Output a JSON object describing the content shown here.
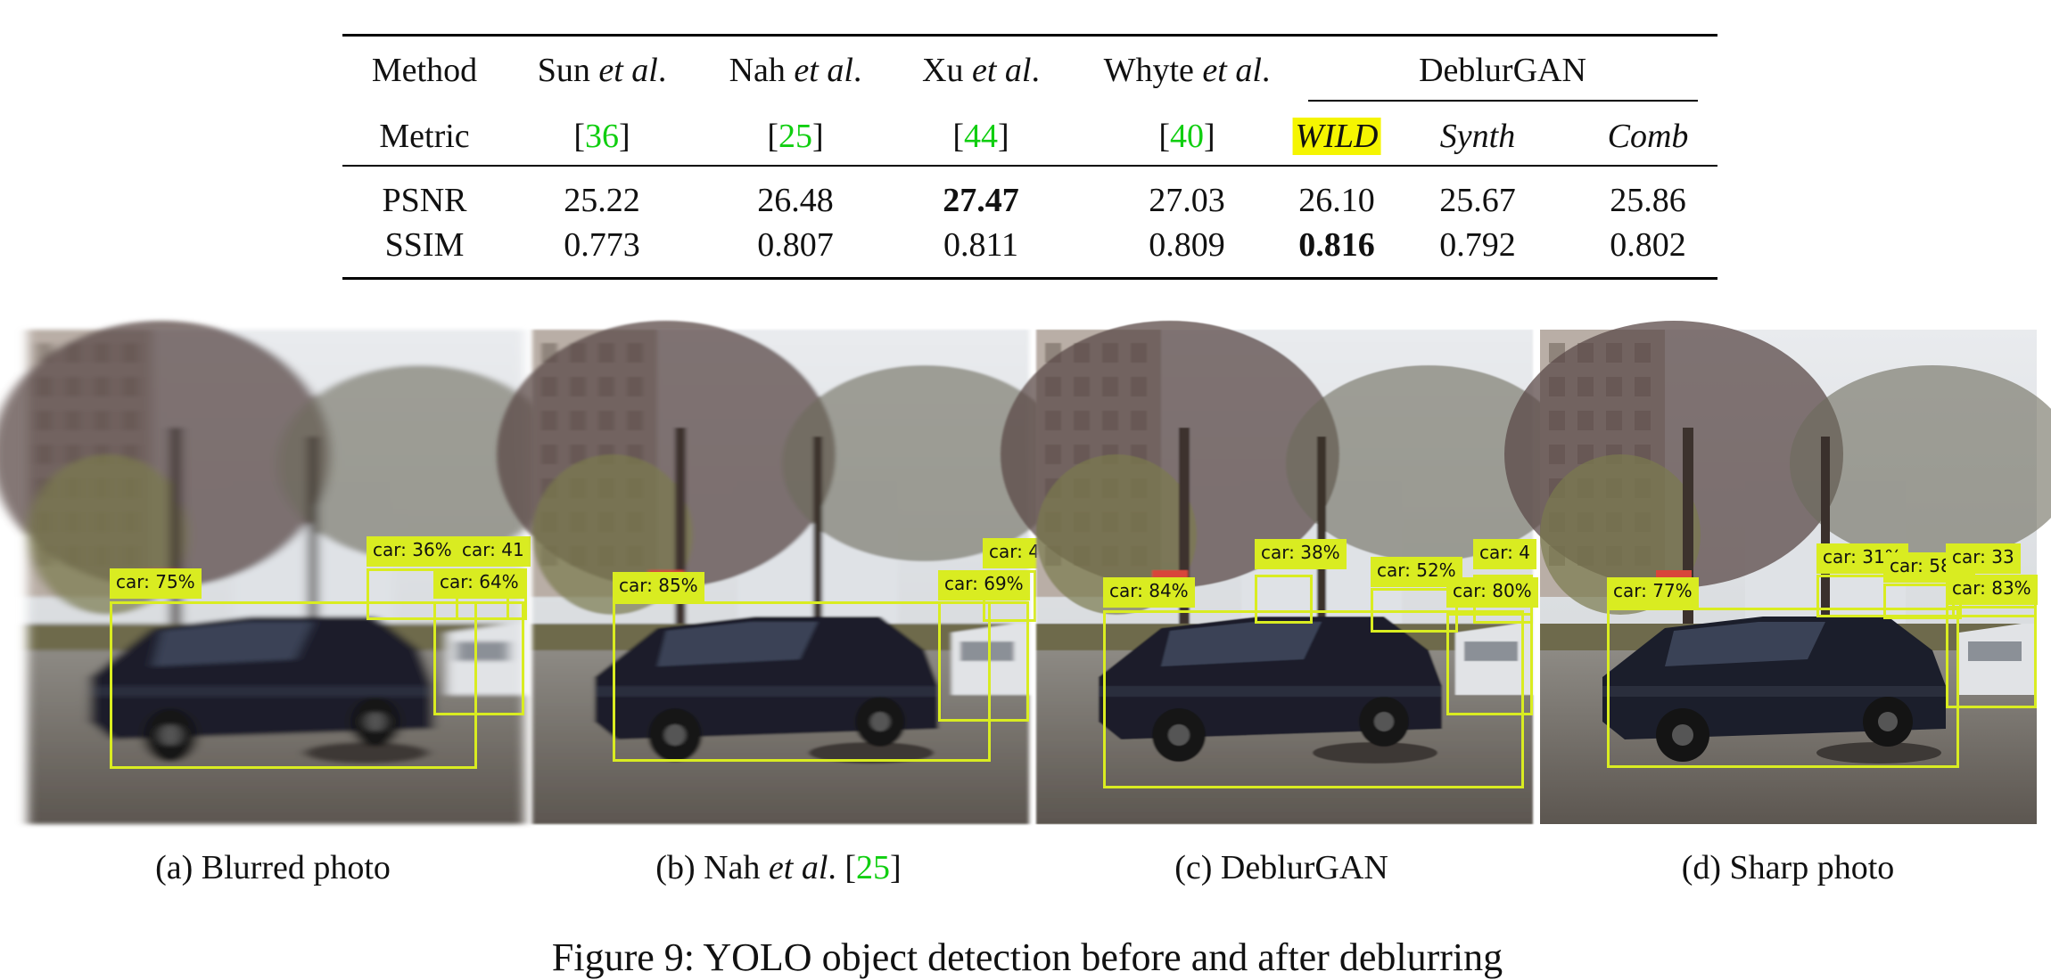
{
  "table": {
    "header_row1": [
      "Method",
      "Sun",
      "Nah",
      "Xu",
      "Whyte",
      "DeblurGAN"
    ],
    "et_al": "et al",
    "period": ".",
    "header_row2": {
      "metric": "Metric",
      "refs": [
        "36",
        "25",
        "44",
        "40"
      ],
      "bracket_open": "[",
      "bracket_close": "]",
      "variants": [
        "WILD",
        "Synth",
        "Comb"
      ]
    },
    "rows": [
      {
        "label": "PSNR",
        "values": [
          "25.22",
          "26.48",
          "27.47",
          "27.03",
          "26.10",
          "25.67",
          "25.86"
        ],
        "bold_index": 2
      },
      {
        "label": "SSIM",
        "values": [
          "0.773",
          "0.807",
          "0.811",
          "0.809",
          "0.816",
          "0.792",
          "0.802"
        ],
        "bold_index": 4
      }
    ],
    "highlight_color": "#f5f500",
    "ref_color": "#10ce10"
  },
  "panels": [
    {
      "caption_prefix": "(a) Blurred photo",
      "detections": [
        "car: 75%",
        "car: 36%",
        "car: 41",
        "car: 64%"
      ],
      "blur": 6
    },
    {
      "caption_prefix": "(b) Nah ",
      "caption_italic": "et al",
      "caption_mid": ". [",
      "caption_ref": "25",
      "caption_end": "]",
      "detections": [
        "car: 85%",
        "car: 4",
        "car: 69%"
      ],
      "blur": 2.5
    },
    {
      "caption_prefix": "(c) DeblurGAN",
      "detections": [
        "car: 84%",
        "car: 38%",
        "car: 52%",
        "car: 4",
        "car: 80%"
      ],
      "blur": 1
    },
    {
      "caption_prefix": "(d) Sharp photo",
      "detections": [
        "car: 77%",
        "car: 31%",
        "car: 58%",
        "car: 33",
        "car: 83%"
      ],
      "blur": 0
    }
  ],
  "detection_color": "#d9ec21",
  "figure_caption": "Figure 9: YOLO object detection before and after deblurring"
}
